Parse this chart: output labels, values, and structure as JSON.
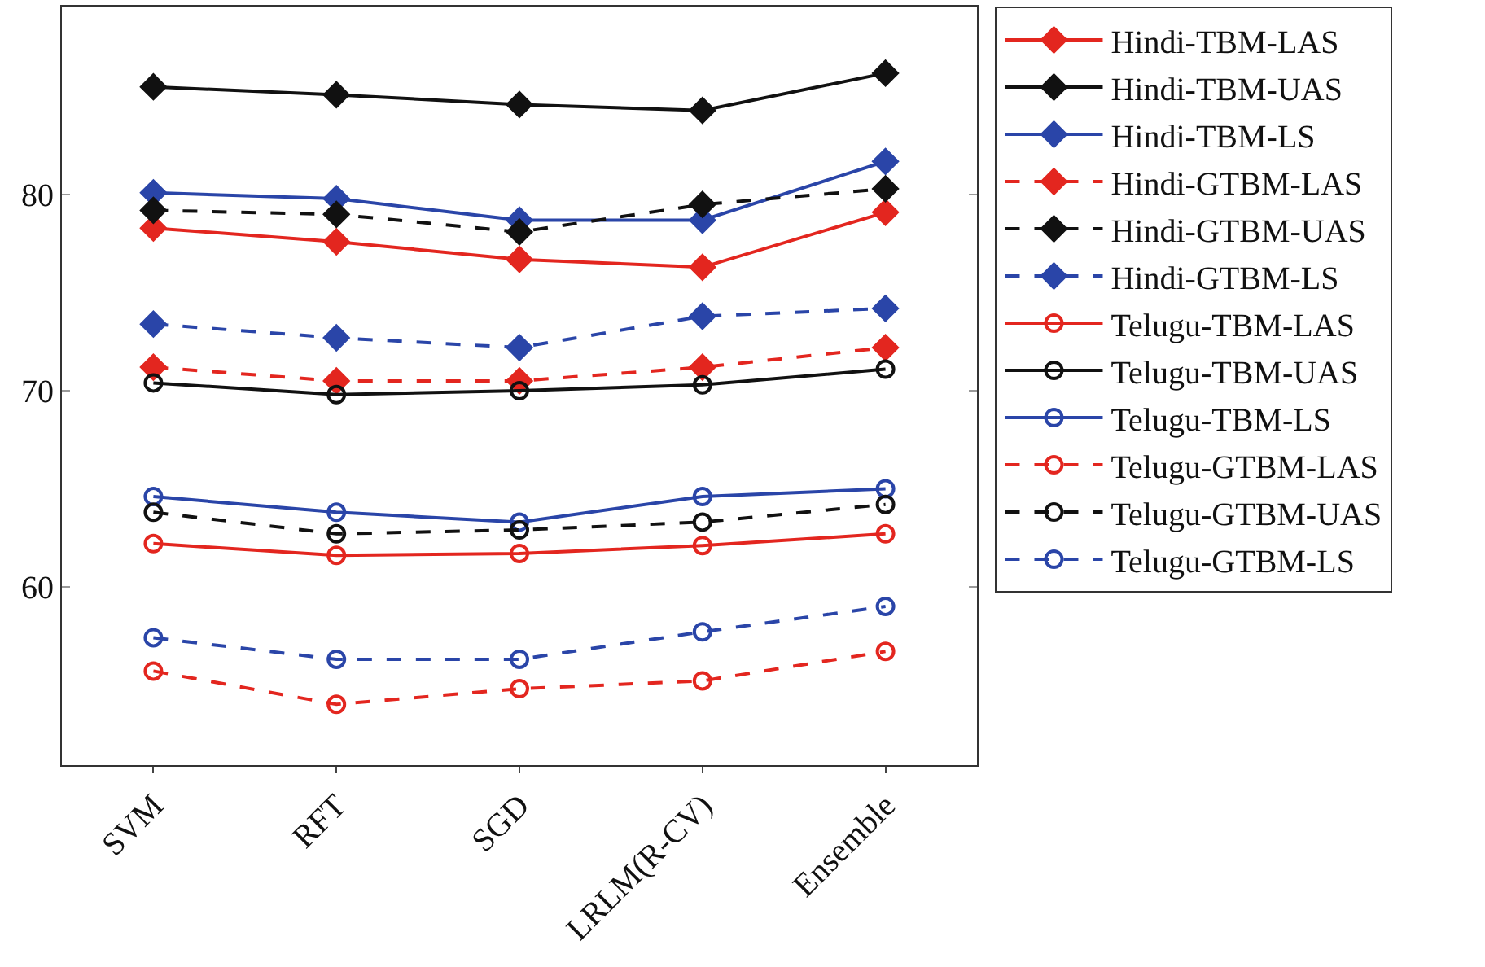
{
  "chart_data": {
    "type": "line",
    "categories": [
      "SVM",
      "RFT",
      "SGD",
      "LRLM(R-CV)",
      "Ensemble"
    ],
    "ylim": [
      50.9,
      89.6
    ],
    "yticks": [
      60,
      70,
      80
    ],
    "legend": "right",
    "series": [
      {
        "name": "Hindi-TBM-LAS",
        "color": "#e3261f",
        "marker": "diamond",
        "line_style": "solid",
        "values": [
          78.3,
          77.6,
          76.7,
          76.3,
          79.1
        ]
      },
      {
        "name": "Hindi-TBM-UAS",
        "color": "#111111",
        "marker": "diamond",
        "line_style": "solid",
        "values": [
          85.5,
          85.1,
          84.6,
          84.3,
          86.2
        ]
      },
      {
        "name": "Hindi-TBM-LS",
        "color": "#2a45a8",
        "marker": "diamond",
        "line_style": "solid",
        "values": [
          80.1,
          79.8,
          78.7,
          78.7,
          81.7
        ]
      },
      {
        "name": "Hindi-GTBM-LAS",
        "color": "#e3261f",
        "marker": "diamond",
        "line_style": "dashed",
        "values": [
          71.2,
          70.5,
          70.5,
          71.2,
          72.2
        ]
      },
      {
        "name": "Hindi-GTBM-UAS",
        "color": "#111111",
        "marker": "diamond",
        "line_style": "dashed",
        "values": [
          79.2,
          79.0,
          78.1,
          79.5,
          80.3
        ]
      },
      {
        "name": "Hindi-GTBM-LS",
        "color": "#2a45a8",
        "marker": "diamond",
        "line_style": "dashed",
        "values": [
          73.4,
          72.7,
          72.2,
          73.8,
          74.2
        ]
      },
      {
        "name": "Telugu-TBM-LAS",
        "color": "#e3261f",
        "marker": "circle",
        "line_style": "solid",
        "values": [
          62.2,
          61.6,
          61.7,
          62.1,
          62.7
        ]
      },
      {
        "name": "Telugu-TBM-UAS",
        "color": "#111111",
        "marker": "circle",
        "line_style": "solid",
        "values": [
          70.4,
          69.8,
          70.0,
          70.3,
          71.1
        ]
      },
      {
        "name": "Telugu-TBM-LS",
        "color": "#2a45a8",
        "marker": "circle",
        "line_style": "solid",
        "values": [
          64.6,
          63.8,
          63.3,
          64.6,
          65.0
        ]
      },
      {
        "name": "Telugu-GTBM-LAS",
        "color": "#e3261f",
        "marker": "circle",
        "line_style": "dashed",
        "values": [
          55.7,
          54.0,
          54.8,
          55.2,
          56.7
        ]
      },
      {
        "name": "Telugu-GTBM-UAS",
        "color": "#111111",
        "marker": "circle",
        "line_style": "dashed",
        "values": [
          63.8,
          62.7,
          62.9,
          63.3,
          64.2
        ]
      },
      {
        "name": "Telugu-GTBM-LS",
        "color": "#2a45a8",
        "marker": "circle",
        "line_style": "dashed",
        "values": [
          57.4,
          56.3,
          56.3,
          57.7,
          59.0
        ]
      }
    ]
  }
}
